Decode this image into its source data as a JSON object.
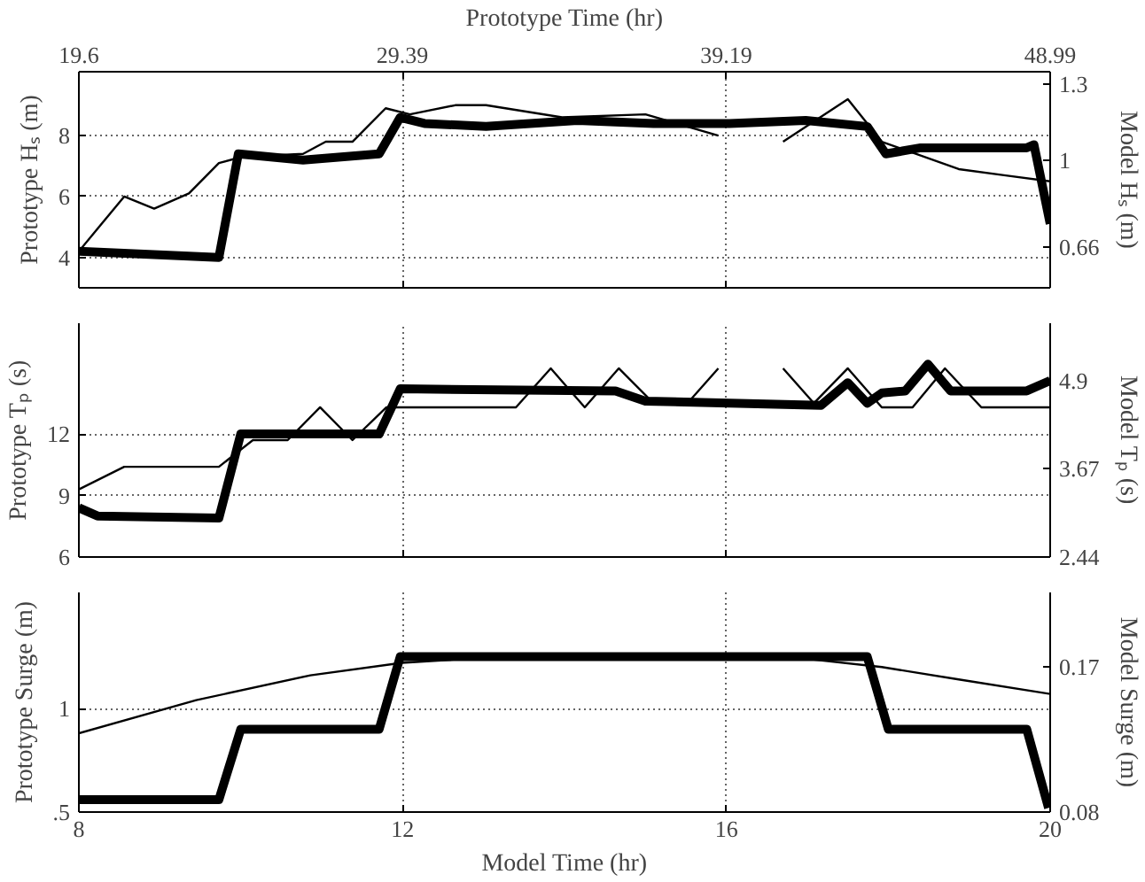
{
  "chart_data": [
    {
      "type": "line",
      "xlabel": null,
      "x2label": "Prototype Time (hr)",
      "ylabel": "Prototype Hₛ (m)",
      "y2label": "Model Hₛ (m)",
      "xlim": [
        8,
        20
      ],
      "xticks": [
        8,
        12,
        16,
        20
      ],
      "x2lim": [
        19.6,
        48.99
      ],
      "x2ticks": [
        19.6,
        29.39,
        39.19,
        48.99
      ],
      "ylim": [
        3,
        10.1
      ],
      "yticks": [
        4,
        6,
        8
      ],
      "y2lim": [
        0.5,
        1.35
      ],
      "y2ticks": [
        0.66,
        1,
        1.3
      ],
      "grid": true,
      "tick_labels": "y",
      "line_style": "solid",
      "series": [
        {
          "color": "#000000",
          "x": [
            8,
            9.73,
            9.97,
            10.77,
            11.71,
            11.97,
            12.27,
            13.03,
            14.16,
            15.1,
            16.04,
            16.98,
            17.74,
            17.97,
            18.4,
            19.71,
            19.8,
            20
          ],
          "values": [
            4.2,
            4.0,
            7.4,
            7.2,
            7.4,
            8.6,
            8.4,
            8.3,
            8.5,
            8.4,
            8.4,
            8.5,
            8.3,
            7.4,
            7.6,
            7.6,
            7.7,
            5.1
          ]
        },
        {
          "color": "#000000",
          "x": [
            8,
            8.56,
            8.93,
            9.36,
            9.73,
            10.01,
            10.77,
            11.05,
            11.38,
            11.79,
            12.09,
            12.65,
            13.03,
            13.97,
            15.0,
            15.9,
            16.3,
            16.7,
            17.5,
            17.92,
            18.87,
            19.43,
            20
          ],
          "values": [
            4.2,
            6.0,
            5.6,
            6.1,
            7.1,
            7.3,
            7.4,
            7.8,
            7.8,
            8.9,
            8.7,
            9.0,
            9.0,
            8.6,
            8.7,
            8.0,
            null,
            7.8,
            9.2,
            7.8,
            6.9,
            6.7,
            6.5
          ]
        }
      ]
    },
    {
      "type": "line",
      "ylabel": "Prototype Tₚ (s)",
      "y2label": "Model Tₚ (s)",
      "xlim": [
        8,
        20
      ],
      "xticks": [
        8,
        12,
        16,
        20
      ],
      "ylim": [
        6,
        17.4
      ],
      "yticks": [
        6,
        9,
        12
      ],
      "y2lim": [
        2.44,
        5.7
      ],
      "y2ticks": [
        2.44,
        3.67,
        4.9
      ],
      "grid": true,
      "tick_labels": "y",
      "line_style": "solid",
      "series": [
        {
          "color": "#000000",
          "x": [
            8,
            8.23,
            9.73,
            10.0,
            11.71,
            11.97,
            14.63,
            15.0,
            17.17,
            17.5,
            17.74,
            17.92,
            18.21,
            18.49,
            18.77,
            19.71,
            20
          ],
          "values": [
            8.4,
            8.0,
            7.9,
            12.0,
            12.0,
            14.2,
            14.1,
            13.6,
            13.4,
            14.5,
            13.5,
            14.0,
            14.1,
            15.4,
            14.1,
            14.1,
            14.6
          ]
        },
        {
          "color": "#000000",
          "x": [
            8,
            8.56,
            9.73,
            10.15,
            10.58,
            10.98,
            11.38,
            11.8,
            13.4,
            13.83,
            14.25,
            14.67,
            15.1,
            15.52,
            15.9,
            16.3,
            16.7,
            17.08,
            17.5,
            17.92,
            18.3,
            18.7,
            19.15,
            20
          ],
          "values": [
            9.3,
            10.4,
            10.4,
            11.7,
            11.7,
            13.3,
            11.7,
            13.3,
            13.3,
            15.2,
            13.3,
            15.2,
            13.5,
            13.5,
            15.2,
            null,
            15.2,
            13.5,
            15.2,
            13.3,
            13.3,
            15.2,
            13.3,
            13.3
          ]
        }
      ]
    },
    {
      "type": "line",
      "xlabel": "Model Time (hr)",
      "ylabel": "Prototype Surge (m)",
      "y2label": "Model Surge (m)",
      "xlim": [
        8,
        20
      ],
      "xticks": [
        8,
        12,
        16,
        20
      ],
      "ylim": [
        0.5,
        1.56
      ],
      "yticks": [
        {
          "value": 0.5,
          "label": ".5"
        },
        1
      ],
      "y2lim": [
        0.08,
        0.216
      ],
      "y2ticks": [
        0.08,
        0.17
      ],
      "grid": true,
      "line_style": "solid",
      "series": [
        {
          "color": "#000000",
          "x": [
            8,
            9.73,
            10.0,
            11.71,
            11.97,
            17.74,
            18.0,
            19.71,
            19.98
          ],
          "values": [
            0.56,
            0.56,
            0.9,
            0.9,
            1.25,
            1.25,
            0.9,
            0.9,
            0.52
          ]
        },
        {
          "color": "#000000",
          "x": [
            8,
            9.45,
            10.86,
            11.99,
            13.22,
            14.63,
            16.04,
            16.98,
            17.92,
            18.87,
            20
          ],
          "values": [
            0.88,
            1.04,
            1.16,
            1.22,
            1.25,
            1.26,
            1.25,
            1.24,
            1.2,
            1.14,
            1.07
          ]
        }
      ]
    }
  ]
}
